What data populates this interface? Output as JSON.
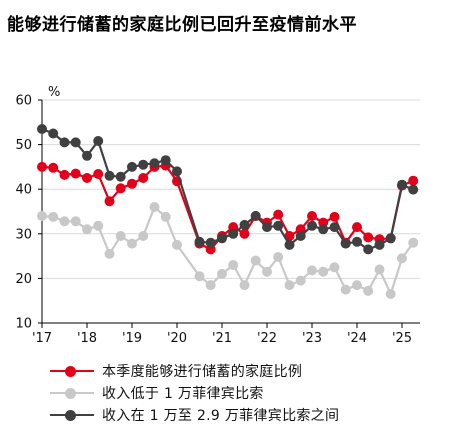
{
  "title": "能够进行储蓄的家庭比例已回升至疫情前水平",
  "chart_data": {
    "type": "line",
    "title": "能够进行储蓄的家庭比例已回升至疫情前水平",
    "ylabel": "%",
    "xlabel": "",
    "ylim": [
      10,
      60
    ],
    "yticks": [
      10,
      20,
      30,
      40,
      50,
      60
    ],
    "xlim": [
      2017,
      2025.4
    ],
    "xticks": [
      {
        "value": 2017,
        "label": "'17"
      },
      {
        "value": 2018,
        "label": "'18"
      },
      {
        "value": 2019,
        "label": "'19"
      },
      {
        "value": 2020,
        "label": "'20"
      },
      {
        "value": 2021,
        "label": "'21"
      },
      {
        "value": 2022,
        "label": "'22"
      },
      {
        "value": 2023,
        "label": "'23"
      },
      {
        "value": 2024,
        "label": "'24"
      },
      {
        "value": 2025,
        "label": "'25"
      }
    ],
    "grid": true,
    "legend_position": "bottom",
    "series": [
      {
        "name": "本季度能够进行储蓄的家庭比例",
        "color": "#e2001a",
        "points": [
          [
            2017.0,
            45.0
          ],
          [
            2017.25,
            44.8
          ],
          [
            2017.5,
            43.2
          ],
          [
            2017.75,
            43.5
          ],
          [
            2018.0,
            42.5
          ],
          [
            2018.25,
            43.4
          ],
          [
            2018.5,
            37.3
          ],
          [
            2018.75,
            40.2
          ],
          [
            2019.0,
            41.2
          ],
          [
            2019.25,
            42.5
          ],
          [
            2019.5,
            45.0
          ],
          [
            2019.75,
            45.3
          ],
          [
            2020.0,
            41.8
          ],
          [
            2020.5,
            27.8
          ],
          [
            2020.75,
            26.5
          ],
          [
            2021.0,
            29.5
          ],
          [
            2021.25,
            31.5
          ],
          [
            2021.5,
            30.0
          ],
          [
            2021.75,
            34.0
          ],
          [
            2022.0,
            32.5
          ],
          [
            2022.25,
            34.3
          ],
          [
            2022.5,
            29.5
          ],
          [
            2022.75,
            31.0
          ],
          [
            2023.0,
            34.0
          ],
          [
            2023.25,
            32.5
          ],
          [
            2023.5,
            33.8
          ],
          [
            2023.75,
            28.0
          ],
          [
            2024.0,
            31.5
          ],
          [
            2024.25,
            29.2
          ],
          [
            2024.5,
            28.8
          ],
          [
            2024.75,
            29.0
          ],
          [
            2025.0,
            40.8
          ],
          [
            2025.25,
            41.9
          ]
        ]
      },
      {
        "name": "收入低于 1 万菲律宾比索",
        "color": "#c8c8c8",
        "points": [
          [
            2017.0,
            34.0
          ],
          [
            2017.25,
            33.8
          ],
          [
            2017.5,
            32.8
          ],
          [
            2017.75,
            32.8
          ],
          [
            2018.0,
            31.0
          ],
          [
            2018.25,
            31.8
          ],
          [
            2018.5,
            25.5
          ],
          [
            2018.75,
            29.5
          ],
          [
            2019.0,
            27.8
          ],
          [
            2019.25,
            29.5
          ],
          [
            2019.5,
            36.0
          ],
          [
            2019.75,
            33.8
          ],
          [
            2020.0,
            27.5
          ],
          [
            2020.5,
            20.5
          ],
          [
            2020.75,
            18.5
          ],
          [
            2021.0,
            21.0
          ],
          [
            2021.25,
            23.0
          ],
          [
            2021.5,
            18.5
          ],
          [
            2021.75,
            24.0
          ],
          [
            2022.0,
            21.5
          ],
          [
            2022.25,
            24.8
          ],
          [
            2022.5,
            18.5
          ],
          [
            2022.75,
            19.5
          ],
          [
            2023.0,
            21.8
          ],
          [
            2023.25,
            21.5
          ],
          [
            2023.5,
            22.5
          ],
          [
            2023.75,
            17.5
          ],
          [
            2024.0,
            18.5
          ],
          [
            2024.25,
            17.2
          ],
          [
            2024.5,
            22.0
          ],
          [
            2024.75,
            16.5
          ],
          [
            2025.0,
            24.5
          ],
          [
            2025.25,
            28.0
          ]
        ]
      },
      {
        "name": "收入在 1 万至 2.9 万菲律宾比索之间",
        "color": "#404040",
        "points": [
          [
            2017.0,
            53.5
          ],
          [
            2017.25,
            52.5
          ],
          [
            2017.5,
            50.5
          ],
          [
            2017.75,
            50.5
          ],
          [
            2018.0,
            47.5
          ],
          [
            2018.25,
            50.8
          ],
          [
            2018.5,
            43.0
          ],
          [
            2018.75,
            42.8
          ],
          [
            2019.0,
            45.0
          ],
          [
            2019.25,
            45.5
          ],
          [
            2019.5,
            45.8
          ],
          [
            2019.75,
            46.5
          ],
          [
            2020.0,
            44.0
          ],
          [
            2020.5,
            28.2
          ],
          [
            2020.75,
            28.0
          ],
          [
            2021.0,
            29.0
          ],
          [
            2021.25,
            30.0
          ],
          [
            2021.5,
            32.0
          ],
          [
            2021.75,
            34.0
          ],
          [
            2022.0,
            31.5
          ],
          [
            2022.25,
            31.8
          ],
          [
            2022.5,
            27.5
          ],
          [
            2022.75,
            29.5
          ],
          [
            2023.0,
            31.8
          ],
          [
            2023.25,
            31.0
          ],
          [
            2023.5,
            31.5
          ],
          [
            2023.75,
            27.8
          ],
          [
            2024.0,
            28.2
          ],
          [
            2024.25,
            26.5
          ],
          [
            2024.5,
            27.5
          ],
          [
            2024.75,
            29.0
          ],
          [
            2025.0,
            41.0
          ],
          [
            2025.25,
            39.9
          ]
        ]
      }
    ]
  }
}
